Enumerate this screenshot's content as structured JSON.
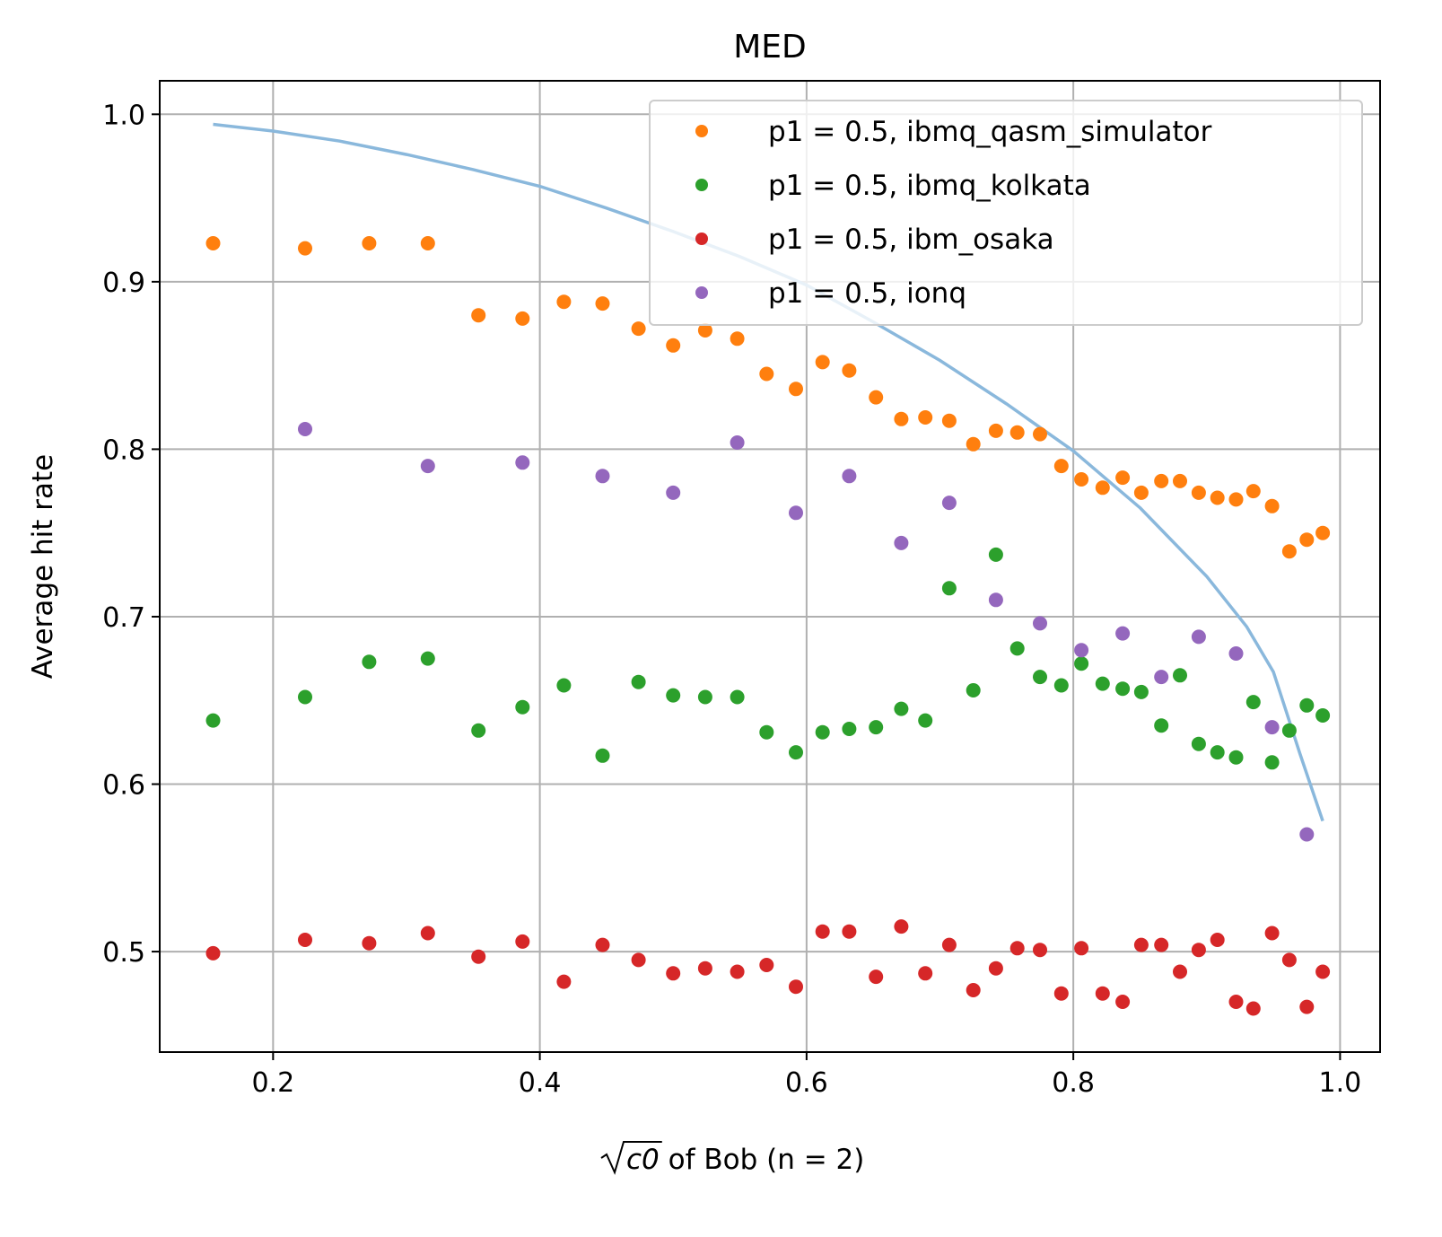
{
  "chart_data": {
    "type": "scatter",
    "title": "MED",
    "xlabel_radicand": "c0",
    "xlabel_rest": " of Bob (n = 2)",
    "ylabel": "Average hit rate",
    "xlim": [
      0.115,
      1.03
    ],
    "ylim": [
      0.44,
      1.02
    ],
    "xticks": [
      0.2,
      0.4,
      0.6,
      0.8,
      1.0
    ],
    "xtick_labels": [
      "0.2",
      "0.4",
      "0.6",
      "0.8",
      "1.0"
    ],
    "yticks": [
      0.5,
      0.6,
      0.7,
      0.8,
      0.9,
      1.0
    ],
    "ytick_labels": [
      "0.5",
      "0.6",
      "0.7",
      "0.8",
      "0.9",
      "1.0"
    ],
    "grid": true,
    "legend_position": "top-right",
    "curve": {
      "color": "#8ab8dc",
      "x": [
        0.155,
        0.2,
        0.25,
        0.3,
        0.35,
        0.4,
        0.45,
        0.5,
        0.55,
        0.6,
        0.65,
        0.7,
        0.75,
        0.8,
        0.85,
        0.9,
        0.93,
        0.95,
        0.97,
        0.987
      ],
      "y": [
        0.994,
        0.99,
        0.984,
        0.976,
        0.967,
        0.957,
        0.944,
        0.93,
        0.915,
        0.898,
        0.876,
        0.853,
        0.827,
        0.799,
        0.765,
        0.724,
        0.694,
        0.667,
        0.618,
        0.578
      ]
    },
    "series": [
      {
        "name": "p1 = 0.5, ibmq_qasm_simulator",
        "color": "#ff7f0e",
        "x": [
          0.155,
          0.224,
          0.272,
          0.316,
          0.354,
          0.387,
          0.418,
          0.447,
          0.474,
          0.5,
          0.524,
          0.548,
          0.57,
          0.592,
          0.612,
          0.632,
          0.652,
          0.671,
          0.689,
          0.707,
          0.725,
          0.742,
          0.758,
          0.775,
          0.791,
          0.806,
          0.822,
          0.837,
          0.851,
          0.866,
          0.88,
          0.894,
          0.908,
          0.922,
          0.935,
          0.949,
          0.962,
          0.975,
          0.987
        ],
        "y": [
          0.923,
          0.92,
          0.923,
          0.923,
          0.88,
          0.878,
          0.888,
          0.887,
          0.872,
          0.862,
          0.871,
          0.866,
          0.845,
          0.836,
          0.852,
          0.847,
          0.831,
          0.818,
          0.819,
          0.817,
          0.803,
          0.811,
          0.81,
          0.809,
          0.79,
          0.782,
          0.777,
          0.783,
          0.774,
          0.781,
          0.781,
          0.774,
          0.771,
          0.77,
          0.775,
          0.766,
          0.739,
          0.746,
          0.75
        ]
      },
      {
        "name": "p1 = 0.5, ibmq_kolkata",
        "color": "#2ca02c",
        "x": [
          0.155,
          0.224,
          0.272,
          0.316,
          0.354,
          0.387,
          0.418,
          0.447,
          0.474,
          0.5,
          0.524,
          0.548,
          0.57,
          0.592,
          0.612,
          0.632,
          0.652,
          0.671,
          0.689,
          0.707,
          0.725,
          0.742,
          0.758,
          0.775,
          0.791,
          0.806,
          0.822,
          0.837,
          0.851,
          0.866,
          0.88,
          0.894,
          0.908,
          0.922,
          0.935,
          0.949,
          0.962,
          0.975,
          0.987
        ],
        "y": [
          0.638,
          0.652,
          0.673,
          0.675,
          0.632,
          0.646,
          0.659,
          0.617,
          0.661,
          0.653,
          0.652,
          0.652,
          0.631,
          0.619,
          0.631,
          0.633,
          0.634,
          0.645,
          0.638,
          0.717,
          0.656,
          0.737,
          0.681,
          0.664,
          0.659,
          0.672,
          0.66,
          0.657,
          0.655,
          0.635,
          0.665,
          0.624,
          0.619,
          0.616,
          0.649,
          0.613,
          0.632,
          0.647,
          0.641
        ]
      },
      {
        "name": "p1 = 0.5, ibm_osaka",
        "color": "#d62728",
        "x": [
          0.155,
          0.224,
          0.272,
          0.316,
          0.354,
          0.387,
          0.418,
          0.447,
          0.474,
          0.5,
          0.524,
          0.548,
          0.57,
          0.592,
          0.612,
          0.632,
          0.652,
          0.671,
          0.689,
          0.707,
          0.725,
          0.742,
          0.758,
          0.775,
          0.791,
          0.806,
          0.822,
          0.837,
          0.851,
          0.866,
          0.88,
          0.894,
          0.908,
          0.922,
          0.935,
          0.949,
          0.962,
          0.975,
          0.987
        ],
        "y": [
          0.499,
          0.507,
          0.505,
          0.511,
          0.497,
          0.506,
          0.482,
          0.504,
          0.495,
          0.487,
          0.49,
          0.488,
          0.492,
          0.479,
          0.512,
          0.512,
          0.485,
          0.515,
          0.487,
          0.504,
          0.477,
          0.49,
          0.502,
          0.501,
          0.475,
          0.502,
          0.475,
          0.47,
          0.504,
          0.504,
          0.488,
          0.501,
          0.507,
          0.47,
          0.466,
          0.511,
          0.495,
          0.467,
          0.488
        ]
      },
      {
        "name": "p1 = 0.5, ionq",
        "color": "#9467bd",
        "x": [
          0.224,
          0.316,
          0.387,
          0.447,
          0.5,
          0.548,
          0.592,
          0.632,
          0.671,
          0.707,
          0.742,
          0.775,
          0.806,
          0.837,
          0.866,
          0.894,
          0.922,
          0.949,
          0.975
        ],
        "y": [
          0.812,
          0.79,
          0.792,
          0.784,
          0.774,
          0.804,
          0.762,
          0.784,
          0.744,
          0.768,
          0.71,
          0.696,
          0.68,
          0.69,
          0.664,
          0.688,
          0.678,
          0.634,
          0.57
        ]
      }
    ]
  }
}
